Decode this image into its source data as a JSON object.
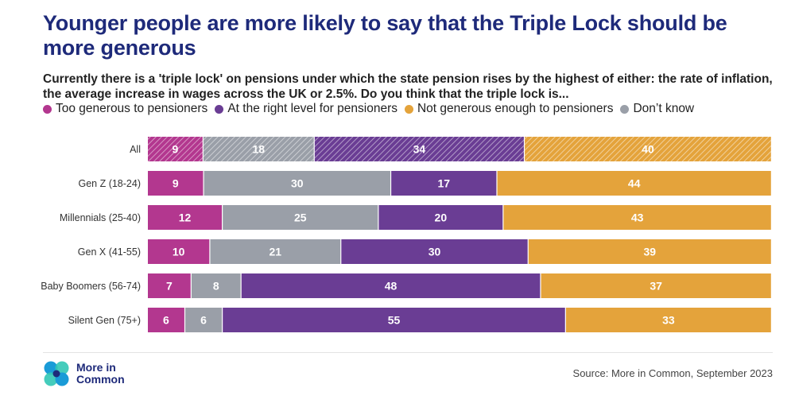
{
  "header": {
    "title": "Younger people are more likely to say that the Triple Lock should be more generous",
    "subtitle": "Currently there is a 'triple lock' on pensions under which the state pension rises by the highest of either: the rate of inflation, the average increase in wages across the UK or 2.5%. Do you think that the triple lock is..."
  },
  "legend": [
    {
      "label": "Too generous to pensioners",
      "color": "#b3378f"
    },
    {
      "label": "At the right level for pensioners",
      "color": "#6a3d94"
    },
    {
      "label": "Not generous enough to pensioners",
      "color": "#e4a33b"
    },
    {
      "label": "Don’t know",
      "color": "#9a9fa8"
    }
  ],
  "chart_data": {
    "type": "bar",
    "orientation": "horizontal",
    "stacked": true,
    "normalized": true,
    "title": "Younger people are more likely to say that the Triple Lock should be more generous",
    "categories": [
      "All",
      "Gen Z (18-24)",
      "Millennials (25-40)",
      "Gen X (41-55)",
      "Baby Boomers (56-74)",
      "Silent Gen (75+)"
    ],
    "segment_order": [
      "Too generous to pensioners",
      "Don’t know",
      "At the right level for pensioners",
      "Not generous enough to pensioners"
    ],
    "series": [
      {
        "name": "Too generous to pensioners",
        "color": "#b3378f",
        "values": [
          9,
          9,
          12,
          10,
          7,
          6
        ]
      },
      {
        "name": "Don’t know",
        "color": "#9a9fa8",
        "values": [
          18,
          30,
          25,
          21,
          8,
          6
        ]
      },
      {
        "name": "At the right level for pensioners",
        "color": "#6a3d94",
        "values": [
          34,
          17,
          20,
          30,
          48,
          55
        ]
      },
      {
        "name": "Not generous enough to pensioners",
        "color": "#e4a33b",
        "values": [
          40,
          44,
          43,
          39,
          37,
          33
        ]
      }
    ],
    "hatched_categories": [
      "All"
    ],
    "xlabel": "",
    "ylabel": ""
  },
  "footer": {
    "logo_line1": "More in",
    "logo_line2": "Common",
    "source": "Source: More in Common, September 2023"
  }
}
